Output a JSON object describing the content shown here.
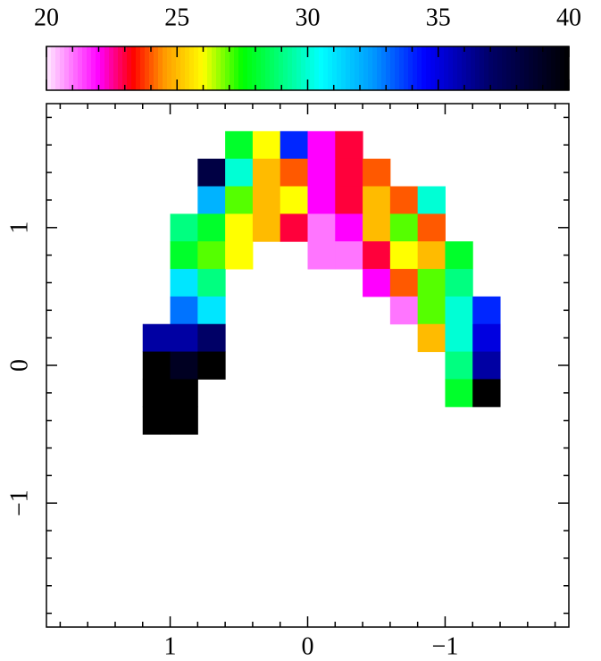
{
  "chart_data": {
    "type": "heatmap",
    "x": [
      1.1,
      0.9,
      0.7,
      0.5,
      0.3,
      0.1,
      -0.1,
      -0.3,
      -0.5,
      -0.7,
      -0.9,
      -1.1,
      -1.3
    ],
    "y": [
      1.6,
      1.4,
      1.2,
      1.0,
      0.8,
      0.6,
      0.4,
      0.2,
      0.0,
      -0.2,
      -0.4
    ],
    "z": [
      [
        null,
        null,
        null,
        28,
        26,
        34,
        22,
        23,
        null,
        null,
        null,
        null,
        null
      ],
      [
        null,
        null,
        38,
        30,
        25,
        24,
        22,
        23,
        24,
        null,
        null,
        null,
        null
      ],
      [
        null,
        null,
        32,
        27,
        25,
        26,
        22,
        23,
        25,
        24,
        30,
        null,
        null
      ],
      [
        null,
        29,
        28,
        26,
        25,
        23,
        21,
        22,
        25,
        27,
        24,
        null,
        null
      ],
      [
        null,
        28,
        27,
        26,
        null,
        null,
        21,
        21,
        23,
        26,
        25,
        28,
        null
      ],
      [
        null,
        31,
        29,
        null,
        null,
        null,
        null,
        null,
        22,
        24,
        27,
        29,
        null
      ],
      [
        null,
        33,
        31,
        null,
        null,
        null,
        null,
        null,
        null,
        21,
        27,
        30,
        34
      ],
      [
        36,
        36,
        37,
        null,
        null,
        null,
        null,
        null,
        null,
        null,
        25,
        30,
        35
      ],
      [
        40,
        39,
        40,
        null,
        null,
        null,
        null,
        null,
        null,
        null,
        null,
        29,
        36
      ],
      [
        40,
        40,
        null,
        null,
        null,
        null,
        null,
        null,
        null,
        null,
        null,
        28,
        40
      ],
      [
        40,
        40,
        null,
        null,
        null,
        null,
        null,
        null,
        null,
        null,
        null,
        null,
        null
      ]
    ],
    "xlim": [
      1.9,
      -1.9
    ],
    "ylim": [
      -1.9,
      1.9
    ],
    "xticks": [
      1,
      0,
      {
        "value": -1,
        "label": "−1"
      }
    ],
    "yticks": [
      {
        "value": -1,
        "label": "−1"
      },
      0,
      1
    ],
    "xminor": [
      1.8,
      1.6,
      1.4,
      1.2,
      0.8,
      0.6,
      0.4,
      0.2,
      -0.2,
      -0.4,
      -0.6,
      -0.8,
      -1.2,
      -1.4,
      -1.6,
      -1.8
    ],
    "yminor": [
      1.8,
      1.6,
      1.4,
      1.2,
      0.8,
      0.6,
      0.4,
      0.2,
      -0.2,
      -0.4,
      -0.6,
      -0.8,
      -1.2,
      -1.4,
      -1.6,
      -1.8
    ],
    "colorbar": {
      "lim": [
        20,
        40
      ],
      "ticks": [
        20,
        25,
        30,
        35,
        40
      ],
      "minor": [
        21,
        22,
        23,
        24,
        26,
        27,
        28,
        29,
        31,
        32,
        33,
        34,
        36,
        37,
        38,
        39
      ],
      "colorscale": [
        [
          20,
          "#ffeaff"
        ],
        [
          22,
          "#ff00ff"
        ],
        [
          23.3,
          "#ff0000"
        ],
        [
          24.5,
          "#ff9900"
        ],
        [
          26,
          "#ffff00"
        ],
        [
          27.5,
          "#00ff00"
        ],
        [
          30.5,
          "#00ffff"
        ],
        [
          32.5,
          "#0099ff"
        ],
        [
          34.5,
          "#0000ff"
        ],
        [
          37,
          "#000066"
        ],
        [
          40,
          "#000000"
        ]
      ]
    }
  }
}
